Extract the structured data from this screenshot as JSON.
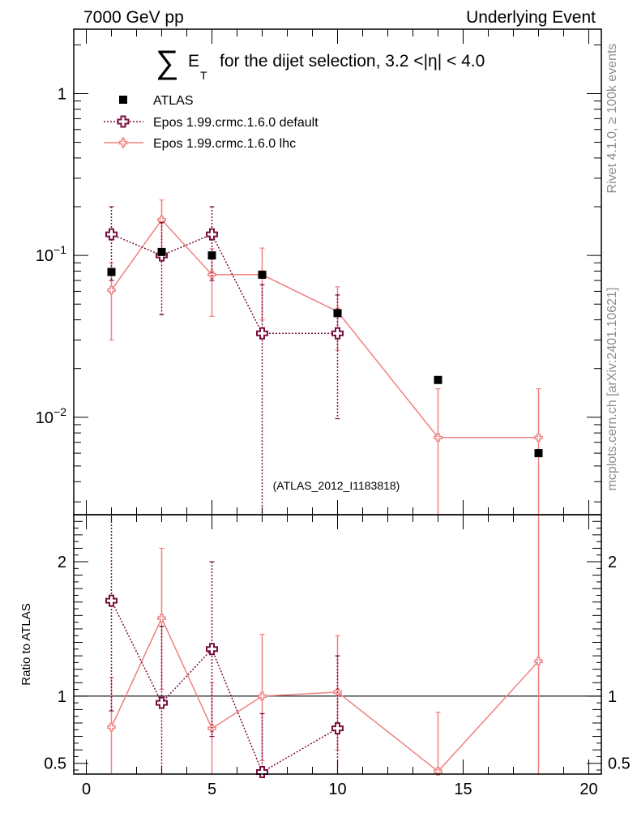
{
  "header": {
    "left": "7000 GeV pp",
    "right": "Underlying Event"
  },
  "side_labels": {
    "upper": "Rivet 4.1.0, ≥ 100k events",
    "lower": "mcplots.cern.ch [arXiv:2401.10621]"
  },
  "chart_data": {
    "type": "scatter",
    "title": {
      "symbol": "∑",
      "et_main": "E",
      "et_sub": "T",
      "rest": "for the dijet selection, 3.2 <|η| < 4.0"
    },
    "analysis_tag": "(ATLAS_2012_I1183818)",
    "xlim": [
      -0.5,
      20.5
    ],
    "x_ticks": [
      "0",
      "5",
      "10",
      "15",
      "20"
    ],
    "main": {
      "yscale": "log",
      "ylim": [
        0.0025,
        2.5
      ],
      "y_ticks": [
        {
          "value": 1,
          "base": "1",
          "exp": ""
        },
        {
          "value": 0.1,
          "base": "10",
          "exp": "−1"
        },
        {
          "value": 0.01,
          "base": "10",
          "exp": "−2"
        }
      ]
    },
    "ratio": {
      "ylabel": "Ratio to ATLAS",
      "ylim": [
        0.42,
        2.35
      ],
      "y_ticks": [
        {
          "value": 0.5,
          "label": "0.5"
        },
        {
          "value": 1,
          "label": "1"
        },
        {
          "value": 2,
          "label": "2"
        }
      ],
      "reference_line": 1
    },
    "legend_position": "top-left",
    "series": [
      {
        "name": "ATLAS",
        "role": "data",
        "color": "#000000",
        "points": [
          {
            "x": 1,
            "y": 0.079
          },
          {
            "x": 3,
            "y": 0.105
          },
          {
            "x": 5,
            "y": 0.1
          },
          {
            "x": 7,
            "y": 0.076
          },
          {
            "x": 10,
            "y": 0.044
          },
          {
            "x": 14,
            "y": 0.017
          },
          {
            "x": 18,
            "y": 0.006
          }
        ]
      },
      {
        "name": "Epos 1.99.crmc.1.6.0 default",
        "role": "mc",
        "color": "#7a1040",
        "linestyle": "dotted",
        "points": [
          {
            "x": 1,
            "xlo": 0,
            "xhi": 2,
            "y": 0.135,
            "ylo": 0.07,
            "yhi": 0.2,
            "r": 1.71,
            "rlo": 0.89,
            "rhi": 2.5
          },
          {
            "x": 3,
            "xlo": 2,
            "xhi": 4,
            "y": 0.1,
            "ylo": 0.043,
            "yhi": 0.16,
            "r": 0.95,
            "rlo": 0.41,
            "rhi": 1.52
          },
          {
            "x": 5,
            "xlo": 4,
            "xhi": 6,
            "y": 0.135,
            "ylo": 0.07,
            "yhi": 0.2,
            "r": 1.35,
            "rlo": 0.7,
            "rhi": 2.0
          },
          {
            "x": 7,
            "xlo": 6,
            "xhi": 8,
            "y": 0.033,
            "ylo": 0.001,
            "yhi": 0.066,
            "r": 0.435,
            "rlo": 0.01,
            "rhi": 0.87
          },
          {
            "x": 10,
            "xlo": 8,
            "xhi": 12,
            "y": 0.033,
            "ylo": 0.0098,
            "yhi": 0.057,
            "r": 0.76,
            "rlo": 0.22,
            "rhi": 1.3
          }
        ]
      },
      {
        "name": "Epos 1.99.crmc.1.6.0 lhc",
        "role": "mc",
        "color": "#f08080",
        "linestyle": "solid",
        "points": [
          {
            "x": 1,
            "xlo": 0,
            "xhi": 2,
            "y": 0.061,
            "ylo": 0.03,
            "yhi": 0.09,
            "r": 0.77,
            "rlo": 0.38,
            "rhi": 1.14
          },
          {
            "x": 3,
            "xlo": 2,
            "xhi": 4,
            "y": 0.166,
            "ylo": 0.11,
            "yhi": 0.22,
            "r": 1.58,
            "rlo": 1.05,
            "rhi": 2.1
          },
          {
            "x": 5,
            "xlo": 4,
            "xhi": 6,
            "y": 0.076,
            "ylo": 0.042,
            "yhi": 0.11,
            "r": 0.76,
            "rlo": 0.42,
            "rhi": 1.1
          },
          {
            "x": 7,
            "xlo": 6,
            "xhi": 8,
            "y": 0.076,
            "ylo": 0.04,
            "yhi": 0.111,
            "r": 1.0,
            "rlo": 0.52,
            "rhi": 1.46
          },
          {
            "x": 10,
            "xlo": 8,
            "xhi": 12,
            "y": 0.045,
            "ylo": 0.026,
            "yhi": 0.064,
            "r": 1.03,
            "rlo": 0.6,
            "rhi": 1.45
          },
          {
            "x": 14,
            "xlo": 12,
            "xhi": 16,
            "y": 0.0075,
            "ylo": 0.0005,
            "yhi": 0.015,
            "r": 0.44,
            "rlo": 0.01,
            "rhi": 0.88
          },
          {
            "x": 18,
            "xlo": 16,
            "xhi": 20,
            "y": 0.0075,
            "ylo": 0.0005,
            "yhi": 0.015,
            "r": 1.26,
            "rlo": 0.01,
            "rhi": 2.5
          }
        ]
      }
    ]
  }
}
